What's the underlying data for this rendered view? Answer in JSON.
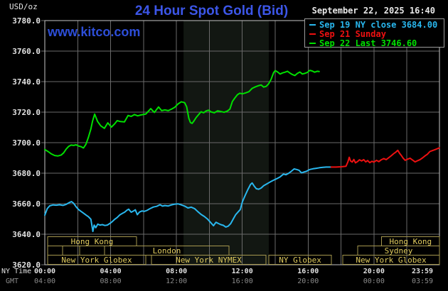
{
  "header": {
    "unit_label": "USD/oz",
    "title": "24 Hour Spot Gold (Bid)",
    "website": "www.kitco.com",
    "datetime": "September 22, 2025 16:40"
  },
  "legend": {
    "items": [
      {
        "label": "Sep 19 NY close 3684.00",
        "color": "#29b7ee"
      },
      {
        "label": "Sep 21 Sunday",
        "color": "#ee1111"
      },
      {
        "label": "Sep 22 Last 3746.60",
        "color": "#00e000"
      }
    ]
  },
  "axes": {
    "ny_time_label": "NY Time",
    "gmt_label": "GMT",
    "ny_ticks": [
      {
        "t": 0,
        "label": "00:00"
      },
      {
        "t": 4,
        "label": "04:00"
      },
      {
        "t": 8,
        "label": "08:00"
      },
      {
        "t": 12,
        "label": "12:00"
      },
      {
        "t": 16,
        "label": "16:00"
      },
      {
        "t": 20,
        "label": "20:00"
      },
      {
        "t": 23.983,
        "label": "23:59"
      }
    ],
    "gmt_ticks": [
      {
        "t": 0,
        "label": "04:00"
      },
      {
        "t": 4,
        "label": "08:00"
      },
      {
        "t": 8,
        "label": "12:00"
      },
      {
        "t": 12,
        "label": "16:00"
      },
      {
        "t": 16,
        "label": "20:00"
      },
      {
        "t": 20,
        "label": "00:00"
      },
      {
        "t": 23.983,
        "label": "03:59"
      }
    ],
    "y_ticks": [
      3780,
      3760,
      3740,
      3720,
      3700,
      3680,
      3660,
      3640,
      3620
    ]
  },
  "sessions": {
    "rows": [
      {
        "boxes": [
          {
            "start": 0.17,
            "end": 5.57,
            "label": "Hong Kong"
          },
          {
            "start": 20.47,
            "end": 23.98,
            "label": "Hong Kong"
          }
        ]
      },
      {
        "boxes": [
          {
            "start": 0.17,
            "end": 1.08,
            "label": ""
          },
          {
            "start": 1.08,
            "end": 2.12,
            "label": ""
          },
          {
            "start": 2.12,
            "end": 3.63,
            "label": ""
          },
          {
            "start": 3.63,
            "end": 11.19,
            "label": "London"
          },
          {
            "start": 19.02,
            "end": 23.98,
            "label": "Sydney"
          }
        ]
      },
      {
        "boxes": [
          {
            "start": 0.17,
            "end": 6.14,
            "label": "New York Globex"
          },
          {
            "start": 6.48,
            "end": 13.44,
            "label": "New York NYMEX"
          },
          {
            "start": 13.61,
            "end": 17.42,
            "label": "NY Globex"
          },
          {
            "start": 18.11,
            "end": 23.98,
            "label": "New York Globex"
          }
        ]
      }
    ],
    "box_color": "#a5974e",
    "label_color": "#e0cb5e"
  },
  "colors": {
    "background": "#000000",
    "plot_border": "#c6c6c6",
    "gridline": "#6a6a6a",
    "shaded_band": "#121712",
    "title_blue": "#3c56e8",
    "kitco_blue": "#2d4ed8",
    "white_text": "#e8e8e8",
    "gmt_gray": "#8b8b8b"
  },
  "chart_data": {
    "type": "line",
    "title": "24 Hour Spot Gold (Bid)",
    "xlabel": "NY Time",
    "ylabel": "USD/oz",
    "x_range_hours": [
      0,
      23.983
    ],
    "ylim": [
      3620,
      3780
    ],
    "y_tick_step": 20,
    "grid": true,
    "legend_position": "top-right",
    "shaded_band_hours": [
      8.43,
      13.61
    ],
    "series": [
      {
        "name": "Sep 19 NY close 3684.00",
        "key": "sep19",
        "color": "#29b7ee",
        "points": [
          [
            0.0,
            3652.5
          ],
          [
            0.15,
            3656.8
          ],
          [
            0.3,
            3658.6
          ],
          [
            0.5,
            3659.2
          ],
          [
            0.7,
            3659.0
          ],
          [
            0.9,
            3659.3
          ],
          [
            1.1,
            3658.9
          ],
          [
            1.3,
            3659.6
          ],
          [
            1.5,
            3660.8
          ],
          [
            1.62,
            3661.4
          ],
          [
            1.75,
            3660.3
          ],
          [
            1.9,
            3658.0
          ],
          [
            2.05,
            3656.2
          ],
          [
            2.2,
            3655.0
          ],
          [
            2.35,
            3653.8
          ],
          [
            2.5,
            3652.6
          ],
          [
            2.65,
            3651.5
          ],
          [
            2.8,
            3649.8
          ],
          [
            2.92,
            3641.8
          ],
          [
            3.0,
            3646.0
          ],
          [
            3.1,
            3644.3
          ],
          [
            3.22,
            3646.6
          ],
          [
            3.35,
            3646.0
          ],
          [
            3.5,
            3646.3
          ],
          [
            3.65,
            3645.7
          ],
          [
            3.8,
            3646.0
          ],
          [
            3.95,
            3647.0
          ],
          [
            4.1,
            3648.3
          ],
          [
            4.25,
            3649.8
          ],
          [
            4.4,
            3651.0
          ],
          [
            4.55,
            3652.6
          ],
          [
            4.7,
            3653.6
          ],
          [
            4.85,
            3654.4
          ],
          [
            5.0,
            3655.8
          ],
          [
            5.1,
            3656.4
          ],
          [
            5.25,
            3654.4
          ],
          [
            5.4,
            3655.3
          ],
          [
            5.5,
            3656.0
          ],
          [
            5.62,
            3652.8
          ],
          [
            5.75,
            3654.5
          ],
          [
            5.9,
            3655.2
          ],
          [
            6.05,
            3655.0
          ],
          [
            6.2,
            3655.6
          ],
          [
            6.4,
            3656.8
          ],
          [
            6.6,
            3657.8
          ],
          [
            6.8,
            3658.3
          ],
          [
            7.0,
            3659.3
          ],
          [
            7.15,
            3658.4
          ],
          [
            7.3,
            3658.8
          ],
          [
            7.5,
            3658.5
          ],
          [
            7.7,
            3659.2
          ],
          [
            7.9,
            3659.7
          ],
          [
            8.1,
            3659.9
          ],
          [
            8.3,
            3659.2
          ],
          [
            8.5,
            3658.4
          ],
          [
            8.7,
            3657.2
          ],
          [
            8.9,
            3657.7
          ],
          [
            9.1,
            3656.8
          ],
          [
            9.3,
            3654.8
          ],
          [
            9.5,
            3653.0
          ],
          [
            9.7,
            3651.6
          ],
          [
            9.9,
            3649.8
          ],
          [
            10.1,
            3647.4
          ],
          [
            10.25,
            3645.6
          ],
          [
            10.4,
            3647.8
          ],
          [
            10.55,
            3647.0
          ],
          [
            10.7,
            3646.3
          ],
          [
            10.85,
            3645.8
          ],
          [
            11.0,
            3644.7
          ],
          [
            11.15,
            3645.3
          ],
          [
            11.3,
            3647.0
          ],
          [
            11.45,
            3650.0
          ],
          [
            11.6,
            3652.8
          ],
          [
            11.75,
            3654.6
          ],
          [
            11.88,
            3656.2
          ],
          [
            12.0,
            3661.0
          ],
          [
            12.1,
            3663.6
          ],
          [
            12.2,
            3666.0
          ],
          [
            12.35,
            3669.5
          ],
          [
            12.5,
            3672.6
          ],
          [
            12.6,
            3673.6
          ],
          [
            12.72,
            3671.6
          ],
          [
            12.85,
            3669.8
          ],
          [
            13.0,
            3669.5
          ],
          [
            13.15,
            3670.3
          ],
          [
            13.3,
            3671.8
          ],
          [
            13.5,
            3673.0
          ],
          [
            13.7,
            3674.3
          ],
          [
            13.9,
            3675.4
          ],
          [
            14.1,
            3676.4
          ],
          [
            14.3,
            3677.6
          ],
          [
            14.5,
            3679.4
          ],
          [
            14.65,
            3679.0
          ],
          [
            14.8,
            3679.8
          ],
          [
            15.0,
            3681.4
          ],
          [
            15.15,
            3682.8
          ],
          [
            15.3,
            3682.4
          ],
          [
            15.45,
            3681.9
          ],
          [
            15.6,
            3680.2
          ],
          [
            15.75,
            3680.8
          ],
          [
            15.9,
            3681.2
          ],
          [
            16.1,
            3682.4
          ],
          [
            16.3,
            3682.9
          ],
          [
            16.5,
            3683.2
          ],
          [
            16.7,
            3683.6
          ],
          [
            16.9,
            3683.8
          ],
          [
            17.1,
            3684.0
          ],
          [
            17.4,
            3684.0
          ]
        ]
      },
      {
        "name": "Sep 21 Sunday",
        "key": "sep21",
        "color": "#ee1111",
        "points": [
          [
            17.4,
            3684.0
          ],
          [
            17.7,
            3684.0
          ],
          [
            18.0,
            3684.2
          ],
          [
            18.3,
            3684.5
          ],
          [
            18.42,
            3687.5
          ],
          [
            18.5,
            3690.4
          ],
          [
            18.58,
            3688.0
          ],
          [
            18.68,
            3687.3
          ],
          [
            18.78,
            3689.0
          ],
          [
            18.88,
            3686.8
          ],
          [
            19.0,
            3687.6
          ],
          [
            19.12,
            3688.8
          ],
          [
            19.25,
            3688.0
          ],
          [
            19.38,
            3688.9
          ],
          [
            19.5,
            3687.4
          ],
          [
            19.62,
            3688.3
          ],
          [
            19.75,
            3686.9
          ],
          [
            19.88,
            3687.8
          ],
          [
            20.0,
            3687.2
          ],
          [
            20.15,
            3688.4
          ],
          [
            20.3,
            3687.6
          ],
          [
            20.45,
            3688.8
          ],
          [
            20.6,
            3689.6
          ],
          [
            20.75,
            3688.9
          ],
          [
            20.9,
            3690.2
          ],
          [
            21.05,
            3691.4
          ],
          [
            21.2,
            3692.8
          ],
          [
            21.35,
            3694.0
          ],
          [
            21.45,
            3695.0
          ],
          [
            21.55,
            3693.2
          ],
          [
            21.65,
            3691.8
          ],
          [
            21.78,
            3689.8
          ],
          [
            21.9,
            3688.4
          ],
          [
            22.05,
            3689.2
          ],
          [
            22.2,
            3689.8
          ],
          [
            22.35,
            3688.6
          ],
          [
            22.5,
            3687.4
          ],
          [
            22.65,
            3688.2
          ],
          [
            22.8,
            3688.9
          ],
          [
            22.95,
            3690.0
          ],
          [
            23.1,
            3691.3
          ],
          [
            23.25,
            3692.4
          ],
          [
            23.4,
            3694.2
          ],
          [
            23.55,
            3694.8
          ],
          [
            23.7,
            3695.4
          ],
          [
            23.85,
            3696.0
          ],
          [
            23.98,
            3696.6
          ]
        ]
      },
      {
        "name": "Sep 22 Last 3746.60",
        "key": "sep22",
        "color": "#00e000",
        "points": [
          [
            0.0,
            3695.5
          ],
          [
            0.2,
            3694.2
          ],
          [
            0.4,
            3692.6
          ],
          [
            0.6,
            3691.6
          ],
          [
            0.8,
            3691.3
          ],
          [
            1.0,
            3691.9
          ],
          [
            1.15,
            3693.4
          ],
          [
            1.3,
            3695.8
          ],
          [
            1.45,
            3697.6
          ],
          [
            1.6,
            3698.4
          ],
          [
            1.75,
            3698.2
          ],
          [
            1.9,
            3698.6
          ],
          [
            2.05,
            3697.8
          ],
          [
            2.2,
            3697.4
          ],
          [
            2.35,
            3696.5
          ],
          [
            2.5,
            3699.0
          ],
          [
            2.65,
            3703.5
          ],
          [
            2.8,
            3709.0
          ],
          [
            2.9,
            3714.0
          ],
          [
            3.03,
            3718.7
          ],
          [
            3.2,
            3714.0
          ],
          [
            3.4,
            3711.0
          ],
          [
            3.62,
            3709.4
          ],
          [
            3.83,
            3713.0
          ],
          [
            4.05,
            3710.2
          ],
          [
            4.25,
            3712.4
          ],
          [
            4.4,
            3714.4
          ],
          [
            4.6,
            3713.8
          ],
          [
            4.84,
            3713.6
          ],
          [
            5.06,
            3717.8
          ],
          [
            5.25,
            3717.2
          ],
          [
            5.45,
            3718.4
          ],
          [
            5.65,
            3717.6
          ],
          [
            5.85,
            3718.2
          ],
          [
            6.14,
            3718.8
          ],
          [
            6.44,
            3722.3
          ],
          [
            6.66,
            3719.8
          ],
          [
            6.91,
            3723.4
          ],
          [
            7.1,
            3721.0
          ],
          [
            7.3,
            3721.5
          ],
          [
            7.5,
            3721.0
          ],
          [
            7.7,
            3722.0
          ],
          [
            7.9,
            3723.2
          ],
          [
            8.1,
            3725.4
          ],
          [
            8.3,
            3726.8
          ],
          [
            8.5,
            3726.2
          ],
          [
            8.62,
            3723.5
          ],
          [
            8.75,
            3716.0
          ],
          [
            8.85,
            3713.2
          ],
          [
            8.95,
            3712.6
          ],
          [
            9.05,
            3714.0
          ],
          [
            9.2,
            3716.5
          ],
          [
            9.35,
            3718.4
          ],
          [
            9.5,
            3720.3
          ],
          [
            9.65,
            3719.6
          ],
          [
            9.8,
            3720.8
          ],
          [
            9.95,
            3721.3
          ],
          [
            10.1,
            3720.2
          ],
          [
            10.3,
            3719.6
          ],
          [
            10.5,
            3720.9
          ],
          [
            10.7,
            3720.4
          ],
          [
            10.9,
            3719.9
          ],
          [
            11.1,
            3720.8
          ],
          [
            11.25,
            3722.0
          ],
          [
            11.4,
            3727.0
          ],
          [
            11.55,
            3729.3
          ],
          [
            11.7,
            3731.4
          ],
          [
            11.85,
            3732.4
          ],
          [
            12.0,
            3732.0
          ],
          [
            12.2,
            3732.6
          ],
          [
            12.4,
            3733.4
          ],
          [
            12.6,
            3735.6
          ],
          [
            12.8,
            3736.6
          ],
          [
            13.0,
            3737.4
          ],
          [
            13.15,
            3737.8
          ],
          [
            13.3,
            3736.4
          ],
          [
            13.45,
            3736.9
          ],
          [
            13.6,
            3738.5
          ],
          [
            13.75,
            3741.5
          ],
          [
            13.9,
            3745.8
          ],
          [
            14.0,
            3747.2
          ],
          [
            14.15,
            3746.3
          ],
          [
            14.3,
            3745.0
          ],
          [
            14.45,
            3745.7
          ],
          [
            14.6,
            3746.2
          ],
          [
            14.75,
            3746.8
          ],
          [
            14.9,
            3745.6
          ],
          [
            15.05,
            3744.6
          ],
          [
            15.2,
            3744.0
          ],
          [
            15.35,
            3745.4
          ],
          [
            15.5,
            3746.3
          ],
          [
            15.65,
            3745.0
          ],
          [
            15.8,
            3745.4
          ],
          [
            15.95,
            3746.0
          ],
          [
            16.1,
            3747.4
          ],
          [
            16.25,
            3747.0
          ],
          [
            16.4,
            3746.2
          ],
          [
            16.55,
            3746.8
          ],
          [
            16.67,
            3746.6
          ]
        ]
      }
    ]
  }
}
